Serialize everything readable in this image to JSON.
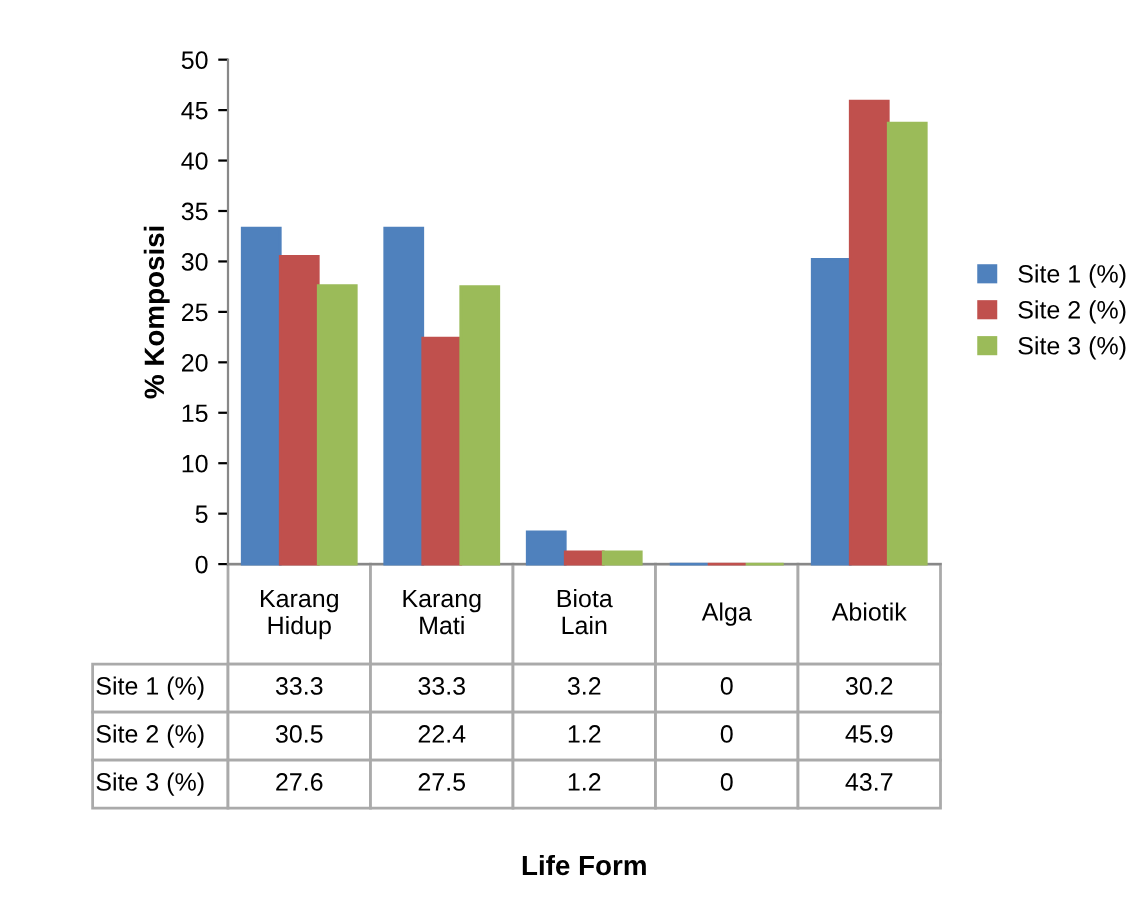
{
  "chart_data": {
    "type": "bar",
    "annotations": [
      "Life Form"
    ],
    "ylabel": "% Komposisi",
    "categories": [
      "Karang Hidup",
      "Karang Mati",
      "Biota Lain",
      "Alga",
      "Abiotik"
    ],
    "series": [
      {
        "name": "Site 1 (%)",
        "color": "#4f81bd",
        "values": [
          33.3,
          33.3,
          3.2,
          0,
          30.2
        ]
      },
      {
        "name": "Site 2 (%)",
        "color": "#c0504d",
        "values": [
          30.5,
          22.4,
          1.2,
          0,
          45.9
        ]
      },
      {
        "name": "Site 3 (%)",
        "color": "#9bbb59",
        "values": [
          27.6,
          27.5,
          1.2,
          0,
          43.7
        ]
      }
    ],
    "ylim": [
      0,
      50
    ],
    "yticks": [
      0,
      5,
      10,
      15,
      20,
      25,
      30,
      35,
      40,
      45,
      50
    ],
    "data_labels": true,
    "legend": "right",
    "grid": false
  }
}
